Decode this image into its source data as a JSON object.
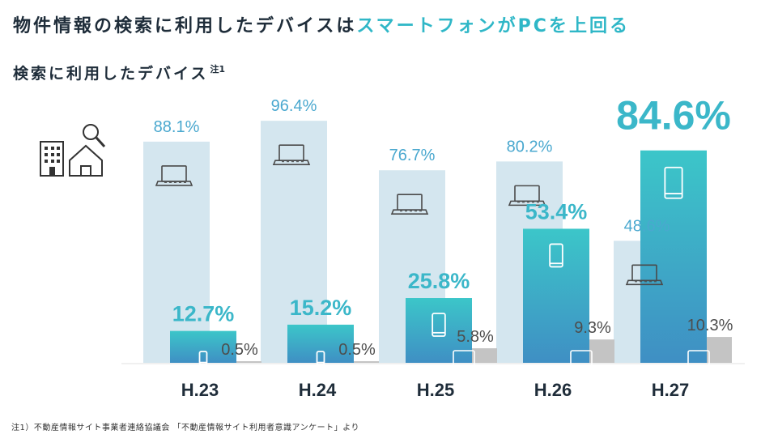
{
  "header": {
    "headline_pre": "物件情報の検索に利用したデバイスは",
    "headline_accent": "スマートフォンがPCを上回る",
    "subtitle": "検索に利用したデバイス",
    "subtitle_note": "注1"
  },
  "footnote": "注1）不動産情報サイト事業者連絡協議会 「不動産情報サイト利用者意識アンケート」より",
  "colors": {
    "pc": "#d4e6ef",
    "pc_label": "#4aa8cf",
    "smartphone_top": "#3cc6c9",
    "smartphone_bottom": "#3f8fc4",
    "smartphone_label": "#3bb7c9",
    "tablet": "#c4c4c4",
    "tablet_label": "#4d4d4d"
  },
  "icons": {
    "pc": "laptop-icon",
    "smartphone": "smartphone-icon",
    "tablet": "tablet-icon",
    "decor": "building-house-search-icon"
  },
  "chart_data": {
    "type": "bar",
    "categories": [
      "H.23",
      "H.24",
      "H.25",
      "H.26",
      "H.27"
    ],
    "series": [
      {
        "key": "pc",
        "values": [
          88.1,
          96.4,
          76.7,
          80.2,
          48.6
        ],
        "labels": [
          "88.1%",
          "96.4%",
          "76.7%",
          "80.2%",
          "48.6%"
        ]
      },
      {
        "key": "smartphone",
        "values": [
          12.7,
          15.2,
          25.8,
          53.4,
          84.6
        ],
        "labels": [
          "12.7%",
          "15.2%",
          "25.8%",
          "53.4%",
          "84.6%"
        ]
      },
      {
        "key": "tablet",
        "values": [
          0.5,
          0.5,
          5.8,
          9.3,
          10.3
        ],
        "labels": [
          "0.5%",
          "0.5%",
          "5.8%",
          "9.3%",
          "10.3%"
        ]
      }
    ],
    "ylim": [
      0,
      100
    ]
  }
}
